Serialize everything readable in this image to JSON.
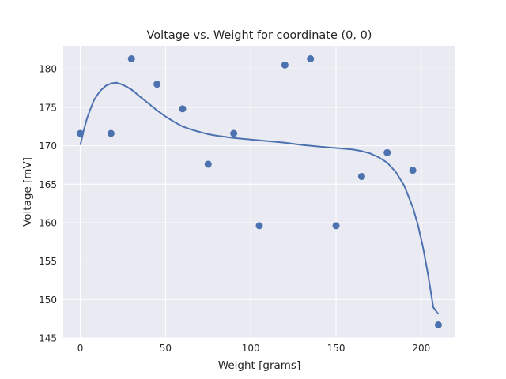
{
  "chart_data": {
    "type": "scatter",
    "title": "Voltage vs. Weight for coordinate (0, 0)",
    "xlabel": "Weight [grams]",
    "ylabel": "Voltage [mV]",
    "xlim": [
      -10,
      220
    ],
    "ylim": [
      145,
      183
    ],
    "xticks": [
      0,
      50,
      100,
      150,
      200
    ],
    "yticks": [
      145,
      150,
      155,
      160,
      165,
      170,
      175,
      180
    ],
    "grid": true,
    "legend": "none",
    "colors": {
      "background": "#eaeaf2",
      "grid": "#ffffff",
      "series": "#4c72b0"
    },
    "series": [
      {
        "kind": "points",
        "x": [
          0,
          18,
          30,
          45,
          60,
          75,
          90,
          105,
          120,
          135,
          150,
          165,
          180,
          195,
          210
        ],
        "y": [
          171.6,
          171.6,
          181.3,
          178.0,
          174.8,
          167.6,
          171.6,
          159.6,
          180.5,
          181.3,
          159.6,
          166.0,
          169.1,
          166.8,
          146.7
        ]
      },
      {
        "kind": "fit-line",
        "x": [
          0,
          2,
          4,
          6,
          8,
          10,
          12,
          15,
          18,
          21,
          24,
          27,
          30,
          35,
          40,
          45,
          50,
          55,
          60,
          65,
          70,
          75,
          80,
          90,
          100,
          110,
          120,
          130,
          140,
          150,
          160,
          165,
          170,
          175,
          180,
          185,
          190,
          195,
          198,
          201,
          204,
          207,
          210
        ],
        "y": [
          170.1,
          172.0,
          173.6,
          174.8,
          175.9,
          176.6,
          177.2,
          177.8,
          178.1,
          178.2,
          178.0,
          177.7,
          177.3,
          176.4,
          175.5,
          174.6,
          173.8,
          173.1,
          172.5,
          172.1,
          171.8,
          171.5,
          171.3,
          171.0,
          170.8,
          170.6,
          170.4,
          170.1,
          169.9,
          169.7,
          169.5,
          169.3,
          169.0,
          168.5,
          167.8,
          166.6,
          164.8,
          162.0,
          159.7,
          156.8,
          153.2,
          149.0,
          148.1
        ]
      }
    ]
  }
}
